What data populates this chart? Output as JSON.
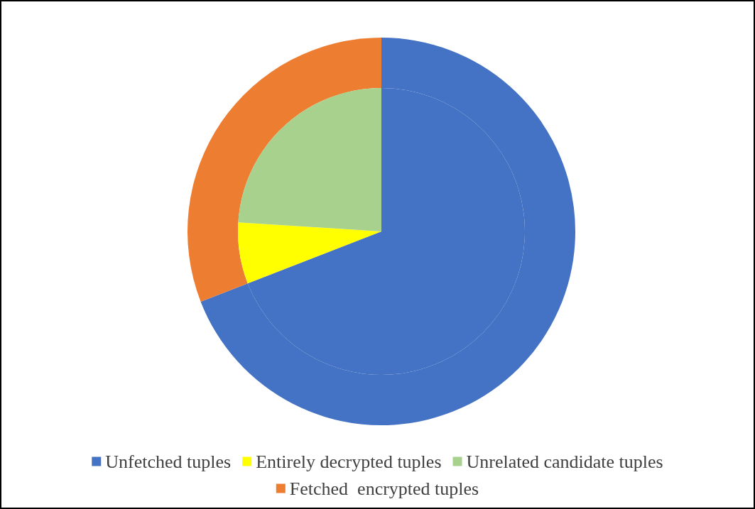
{
  "chart_data": {
    "type": "pie",
    "categories": [
      "Unfetched tuples",
      "Entirely decrypted tuples",
      "Unrelated candidate tuples",
      "Fetched  encrypted tuples"
    ],
    "colors": [
      "#4472c4",
      "#ffff00",
      "#a9d18e",
      "#ed7d31"
    ],
    "series": [
      {
        "values": [
          69.1,
          null,
          null,
          30.9
        ]
      },
      {
        "values": [
          69.1,
          6.9,
          24.0,
          null
        ]
      }
    ],
    "legend": "bottom"
  }
}
